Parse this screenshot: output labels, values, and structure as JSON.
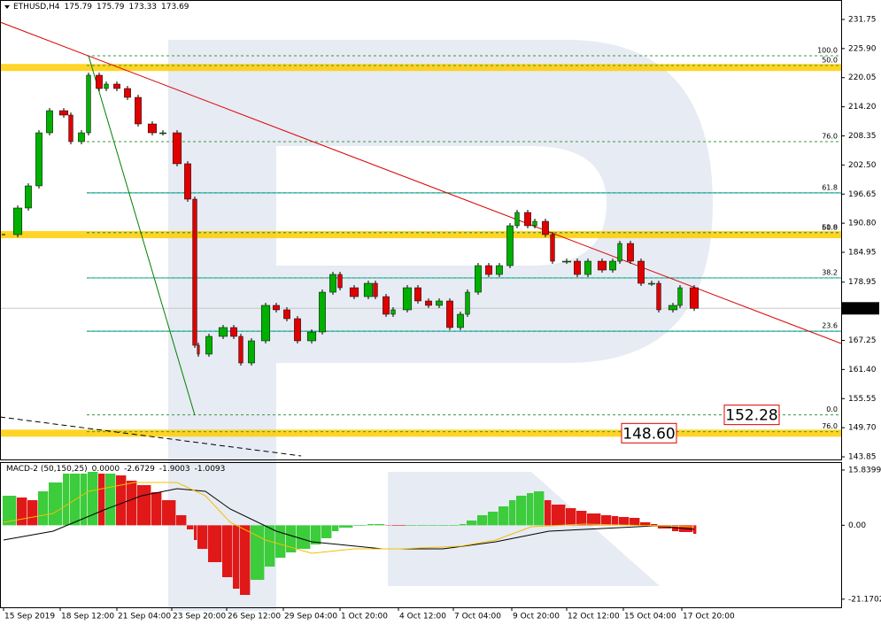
{
  "chart_data": [
    {
      "type": "candlestick",
      "symbol": "ETHUSD,H4",
      "ohlc": [
        175.79,
        175.79,
        173.33,
        173.69
      ],
      "xlim": [
        -1,
        236.5
      ],
      "ylim": [
        143.14,
        234.77
      ],
      "yticks": [
        231.75,
        {
          "value": 225.9,
          "label": "225.90"
        },
        220.05,
        {
          "value": 214.2,
          "label": "214.20"
        },
        208.35,
        {
          "value": 202.5,
          "label": "202.50"
        },
        196.65,
        {
          "value": 190.8,
          "label": "190.80"
        },
        184.95,
        178.95,
        167.25,
        {
          "value": 161.4,
          "label": "161.40"
        },
        155.55,
        {
          "value": 149.7,
          "label": "149.70"
        },
        143.85
      ],
      "x": [
        0,
        4,
        7,
        10,
        13,
        17,
        19,
        22,
        24,
        27,
        29,
        32,
        35,
        38,
        42,
        45,
        49,
        52,
        54,
        55,
        58,
        62,
        65,
        67,
        70,
        74,
        77,
        80,
        83,
        87,
        90,
        93,
        95,
        99,
        103,
        105,
        108,
        110,
        114,
        117,
        120,
        123,
        126,
        129,
        131,
        134,
        137,
        140,
        143,
        145,
        148,
        150,
        153,
        155,
        159,
        162,
        165,
        169,
        172,
        174,
        177,
        180,
        183,
        185,
        189,
        191,
        195
      ],
      "values": [
        188.51,
        193.85,
        198.3,
        208.97,
        213.42,
        212.53,
        207.19,
        208.97,
        220.54,
        217.87,
        218.76,
        217.87,
        216.09,
        210.75,
        208.97,
        208.97,
        202.75,
        195.63,
        166.27,
        164.49,
        168.05,
        169.83,
        168.05,
        162.71,
        167.16,
        174.28,
        173.39,
        171.61,
        167.16,
        168.94,
        176.94,
        180.5,
        177.83,
        176.05,
        178.72,
        176.05,
        172.5,
        173.39,
        177.83,
        175.17,
        174.28,
        175.17,
        169.83,
        172.5,
        176.94,
        182.28,
        180.5,
        182.28,
        190.29,
        192.96,
        190.29,
        191.18,
        188.51,
        183.17,
        183.17,
        180.5,
        183.17,
        181.39,
        183.17,
        186.73,
        183.17,
        178.72,
        178.72,
        173.39,
        174.28,
        177.83,
        173.69
      ],
      "colors": {
        "up": "#00b000",
        "down": "#e00000"
      },
      "last_price_color": "#c8c8c8",
      "fib_levels": [
        {
          "label": "100.0",
          "value": 224.45,
          "color": "#3a9a3a"
        },
        {
          "label": "50.0",
          "value": 222.5,
          "color": "#e03030"
        },
        {
          "label": "76.0",
          "value": 207.2,
          "color": "#3a9a3a"
        },
        {
          "label": "61.8",
          "value": 196.9,
          "color": "#3a9a3a"
        },
        {
          "label": "61.8",
          "value": 188.9,
          "color": "#3a9a3a"
        },
        {
          "label": "50.0",
          "value": 188.9,
          "color": "#e03030"
        },
        {
          "label": "38.2",
          "value": 179.8,
          "color": "#3a9a3a"
        },
        {
          "label": "23.6",
          "value": 169.1,
          "color": "#3a9a3a"
        },
        {
          "label": "0.0",
          "value": 152.28,
          "color": "#3a9a3a"
        },
        {
          "label": "76.0",
          "value": 148.9,
          "color": "#e03030"
        }
      ],
      "zones": {
        "values": [
          222.1,
          188.5,
          148.6
        ],
        "color": "#ffcc00"
      },
      "cyan_lines": {
        "values": [
          196.9,
          179.8,
          169.1
        ],
        "color": "#19b6d8"
      },
      "trend_lines": [
        {
          "x": [
            -1,
            236.5
          ],
          "y": [
            231.22,
            166.63
          ],
          "color": "#d80000",
          "dash": false
        },
        {
          "x": [
            24,
            54
          ],
          "y": [
            224.45,
            152.21
          ],
          "color": "#008000",
          "dash": false
        },
        {
          "x": [
            -1,
            84
          ],
          "y": [
            151.86,
            144.03
          ],
          "color": "#000000",
          "dash": true
        }
      ],
      "callouts": [
        {
          "value": 152.28,
          "label": "152.28",
          "color": "#e00000"
        },
        {
          "value": 148.6,
          "label": "148.60",
          "color": "#e00000"
        }
      ]
    },
    {
      "type": "macd",
      "indicator": "MACD-2 (50,150,25)",
      "readings": [
        {
          "value": 0,
          "label": "0.0000"
        },
        -2.6729,
        -1.9003,
        -1.0093
      ],
      "xlim": [
        -1,
        236.5
      ],
      "ylim": [
        -23.5,
        17.6
      ],
      "yticks": [
        15.8399,
        {
          "value": 0,
          "label": "0.00"
        },
        -21.1702
      ],
      "xticks": [
        {
          "value": 0,
          "label": "15 Sep 2019"
        },
        {
          "value": 16,
          "label": "18 Sep 12:00"
        },
        {
          "value": 32,
          "label": "21 Sep 04:00"
        },
        {
          "value": 47.5,
          "label": "23 Sep 20:00"
        },
        {
          "value": 63,
          "label": "26 Sep 12:00"
        },
        {
          "value": 79,
          "label": "29 Sep 04:00"
        },
        {
          "value": 95,
          "label": "1 Oct 20:00"
        },
        {
          "value": 111.5,
          "label": "4 Oct 12:00"
        },
        {
          "value": 127,
          "label": "7 Oct 04:00"
        },
        {
          "value": 143.5,
          "label": "9 Oct 20:00"
        },
        {
          "value": 159,
          "label": "12 Oct 12:00"
        },
        {
          "value": 175,
          "label": "15 Oct 04:00"
        },
        {
          "value": 191.5,
          "label": "17 Oct 20:00"
        }
      ],
      "x": [
        0,
        4,
        7,
        10,
        13,
        17,
        19,
        22,
        24,
        27,
        29,
        32,
        35,
        38,
        42,
        45,
        49,
        52,
        54,
        55,
        58,
        62,
        65,
        67,
        70,
        74,
        77,
        80,
        83,
        87,
        90,
        93,
        95,
        99,
        103,
        105,
        108,
        110,
        114,
        117,
        120,
        123,
        126,
        129,
        131,
        134,
        137,
        140,
        143,
        145,
        148,
        150,
        153,
        155,
        159,
        162,
        165,
        169,
        172,
        174,
        177,
        180,
        183,
        185,
        189,
        191,
        195
      ],
      "histogram": {
        "values": [
          8.47,
          7.96,
          7.2,
          9.74,
          12.27,
          14.81,
          14.81,
          14.81,
          15.32,
          14.81,
          14.81,
          14.3,
          12.78,
          11.51,
          9.48,
          7.2,
          2.89,
          -1.17,
          -4.22,
          -6.76,
          -10.56,
          -14.87,
          -18.17,
          -19.95,
          -15.63,
          -11.83,
          -9.29,
          -7.77,
          -6.75,
          -5.49,
          -3.71,
          -1.68,
          -0.67,
          -0.16,
          0.35,
          0.35,
          0.1,
          -0.16,
          -0.16,
          -0.16,
          -0.16,
          -0.16,
          -0.16,
          0.35,
          1.36,
          2.89,
          3.9,
          5.42,
          7.2,
          8.47,
          9.23,
          9.74,
          7.2,
          5.93,
          4.91,
          4.15,
          3.39,
          2.89,
          2.64,
          2.38,
          2.13,
          0.86,
          0.35,
          -0.92,
          -1.68,
          -1.93,
          -2.44
        ],
        "up_color": "#3ccc3c",
        "down_color": "#e01818"
      },
      "lines": [
        {
          "x": [
            0,
            14,
            29,
            39,
            49,
            57,
            64,
            77,
            87,
            107,
            124,
            139,
            154,
            174,
            184,
            195
          ],
          "values": [
            -4.22,
            -1.68,
            4.66,
            8.47,
            10.5,
            9.74,
            4.66,
            -1.68,
            -4.73,
            -6.76,
            -6.76,
            -4.73,
            -1.68,
            -0.67,
            -0.16,
            -1.17
          ],
          "color": "#000000"
        },
        {
          "x": [
            0,
            14,
            24,
            37,
            49,
            57,
            64,
            74,
            87,
            99,
            112,
            129,
            139,
            149,
            164,
            195
          ],
          "values": [
            0.86,
            3.39,
            9.74,
            12.27,
            12.27,
            8.47,
            0.86,
            -4.22,
            -8.02,
            -6.76,
            -6.76,
            -5.99,
            -4.22,
            -0.41,
            0.35,
            -0.41
          ],
          "color": "#f0c000"
        }
      ]
    }
  ]
}
